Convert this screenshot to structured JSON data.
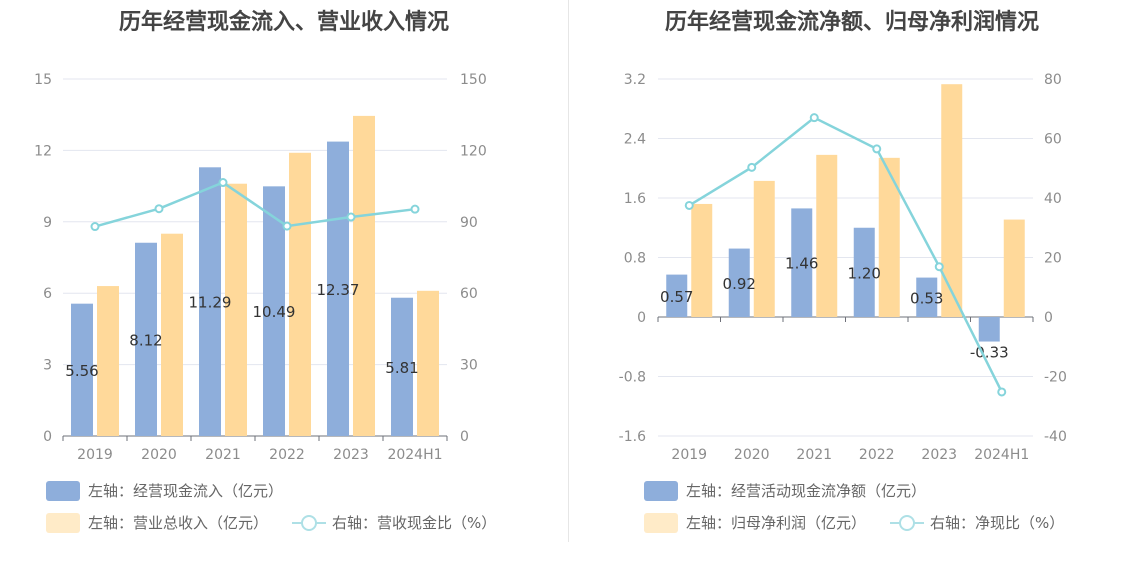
{
  "charts": [
    {
      "title": "历年经营现金流入、营业收入情况",
      "legend": [
        "左轴：经营现金流入（亿元）",
        "左轴：营业总收入（亿元）",
        "右轴：营收现金比（%）"
      ]
    },
    {
      "title": "历年经营现金流净额、归母净利润情况",
      "legend": [
        "左轴：经营活动现金流净额（亿元）",
        "左轴：归母净利润（亿元）",
        "右轴：净现比（%）"
      ]
    }
  ],
  "chart_data": [
    {
      "type": "bar",
      "title": "历年经营现金流入、营业收入情况",
      "categories": [
        "2019",
        "2020",
        "2021",
        "2022",
        "2023",
        "2024H1"
      ],
      "left_axis": {
        "ticks": [
          "0",
          "3",
          "6",
          "9",
          "12",
          "15"
        ],
        "range": [
          0,
          15
        ]
      },
      "right_axis": {
        "ticks": [
          "0",
          "30",
          "60",
          "90",
          "120",
          "150"
        ],
        "range": [
          0,
          150
        ]
      },
      "grid": true,
      "legend_position": "bottom-left",
      "series": [
        {
          "name": "左轴：经营现金流入（亿元）",
          "type": "bar",
          "axis": "left",
          "color": "#8eaedb",
          "values": [
            5.56,
            8.12,
            11.29,
            10.49,
            12.37,
            5.81
          ],
          "labels": [
            "5.56",
            "8.12",
            "11.29",
            "10.49",
            "12.37",
            "5.81"
          ]
        },
        {
          "name": "左轴：营业总收入（亿元）",
          "type": "bar",
          "axis": "left",
          "color": "#ffd99a",
          "values": [
            6.3,
            8.5,
            10.6,
            11.9,
            13.45,
            6.1
          ]
        },
        {
          "name": "右轴：营收现金比（%）",
          "type": "line",
          "axis": "right",
          "color": "#85d4db",
          "values": [
            88,
            95.5,
            106.5,
            88.2,
            92,
            95.3
          ]
        }
      ]
    },
    {
      "type": "bar",
      "title": "历年经营现金流净额、归母净利润情况",
      "categories": [
        "2019",
        "2020",
        "2021",
        "2022",
        "2023",
        "2024H1"
      ],
      "left_axis": {
        "ticks": [
          "-1.6",
          "-0.8",
          "0",
          "0.8",
          "1.6",
          "2.4",
          "3.2"
        ],
        "range": [
          -1.6,
          3.2
        ]
      },
      "right_axis": {
        "ticks": [
          "-40",
          "-20",
          "0",
          "20",
          "40",
          "60",
          "80"
        ],
        "range": [
          -40,
          80
        ]
      },
      "grid": true,
      "legend_position": "bottom-left",
      "series": [
        {
          "name": "左轴：经营活动现金流净额（亿元）",
          "type": "bar",
          "axis": "left",
          "color": "#8eaedb",
          "values": [
            0.57,
            0.92,
            1.46,
            1.2,
            0.53,
            -0.33
          ],
          "labels": [
            "0.57",
            "0.92",
            "1.46",
            "1.20",
            "0.53",
            "-0.33"
          ]
        },
        {
          "name": "左轴：归母净利润（亿元）",
          "type": "bar",
          "axis": "left",
          "color": "#ffd99a",
          "values": [
            1.52,
            1.83,
            2.18,
            2.14,
            3.13,
            1.31
          ]
        },
        {
          "name": "右轴：净现比（%）",
          "type": "line",
          "axis": "right",
          "color": "#85d4db",
          "values": [
            37.5,
            50.3,
            67,
            56.5,
            16.9,
            -25.2
          ]
        }
      ]
    }
  ]
}
